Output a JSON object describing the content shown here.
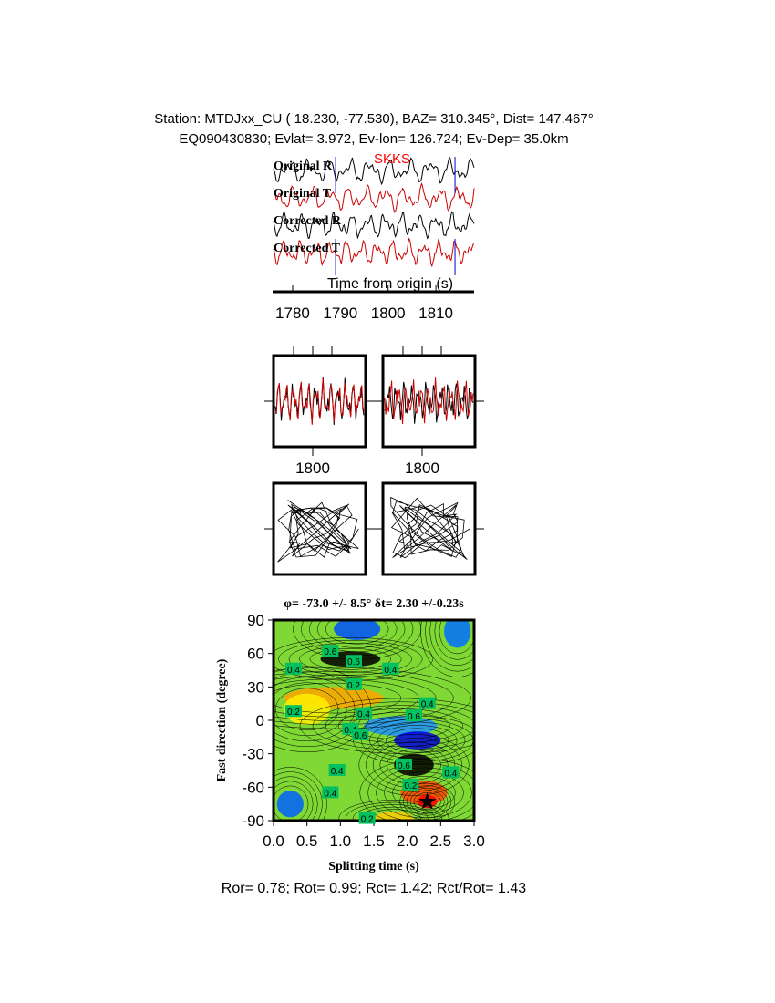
{
  "header": {
    "line1": "Station: MTDJxx_CU (  18.230,  -77.530), BAZ=  310.345°, Dist=  147.467°",
    "line2": "EQ090430830; Evlat=   3.972, Ev-lon= 126.724; Ev-Dep= 35.0km"
  },
  "chart_data": [
    {
      "type": "line",
      "title": "",
      "phase_label": "SKKS",
      "trace_labels": [
        "Original R",
        "Original T",
        "Corrected R",
        "Corrected T"
      ],
      "xlabel": "Time from origin (s)",
      "x_ticks": [
        "1780",
        "1790",
        "1800",
        "1810"
      ],
      "xlim": [
        1776,
        1818
      ],
      "window_markers": [
        1789,
        1814
      ],
      "colors": {
        "R": "#000000",
        "T": "#cc0000",
        "marker": "#0000cc"
      }
    },
    {
      "type": "line",
      "title": "",
      "panels": [
        {
          "x_tick": "1800",
          "traces": [
            "R",
            "T"
          ]
        },
        {
          "x_tick": "1800",
          "traces": [
            "R",
            "T"
          ]
        }
      ]
    },
    {
      "type": "scatter",
      "title": "",
      "panels": [
        "particle-motion-before",
        "particle-motion-after"
      ]
    },
    {
      "type": "heatmap",
      "title": "φ= -73.0 +/- 8.5° δt= 2.30 +/-0.23s",
      "xlabel": "Splitting time (s)",
      "ylabel": "Fast direction (degree)",
      "xlim": [
        0,
        3
      ],
      "ylim": [
        -90,
        90
      ],
      "x_ticks": [
        "0.0",
        "0.5",
        "1.0",
        "1.5",
        "2.0",
        "2.5",
        "3.0"
      ],
      "y_ticks": [
        "90",
        "60",
        "30",
        "0",
        "-30",
        "-60",
        "-90"
      ],
      "best_fit": {
        "dt": 2.3,
        "phi": -73.0
      },
      "contour_labels": [
        {
          "text": "0.4",
          "dt": 0.3,
          "phi": 46
        },
        {
          "text": "0.6",
          "dt": 0.85,
          "phi": 62
        },
        {
          "text": "0.6",
          "dt": 1.2,
          "phi": 53
        },
        {
          "text": "0.4",
          "dt": 1.75,
          "phi": 46
        },
        {
          "text": "0.2",
          "dt": 1.2,
          "phi": 32
        },
        {
          "text": "0.2",
          "dt": 0.3,
          "phi": 8
        },
        {
          "text": "0.4",
          "dt": 1.35,
          "phi": 6
        },
        {
          "text": "0.4",
          "dt": 2.3,
          "phi": 15
        },
        {
          "text": "0.6",
          "dt": 2.1,
          "phi": 4
        },
        {
          "text": "0.4",
          "dt": 1.15,
          "phi": -8
        },
        {
          "text": "0.6",
          "dt": 1.3,
          "phi": -13
        },
        {
          "text": "0.4",
          "dt": 0.95,
          "phi": -45
        },
        {
          "text": "0.6",
          "dt": 1.95,
          "phi": -40
        },
        {
          "text": "0.2",
          "dt": 2.05,
          "phi": -58
        },
        {
          "text": "0.4",
          "dt": 2.65,
          "phi": -47
        },
        {
          "text": "0.4",
          "dt": 0.85,
          "phi": -65
        },
        {
          "text": "0.2",
          "dt": 1.4,
          "phi": -88
        }
      ]
    }
  ],
  "results": "Ror= 0.78; Rot= 0.99; Rct= 1.42; Rct/Rot= 1.43"
}
